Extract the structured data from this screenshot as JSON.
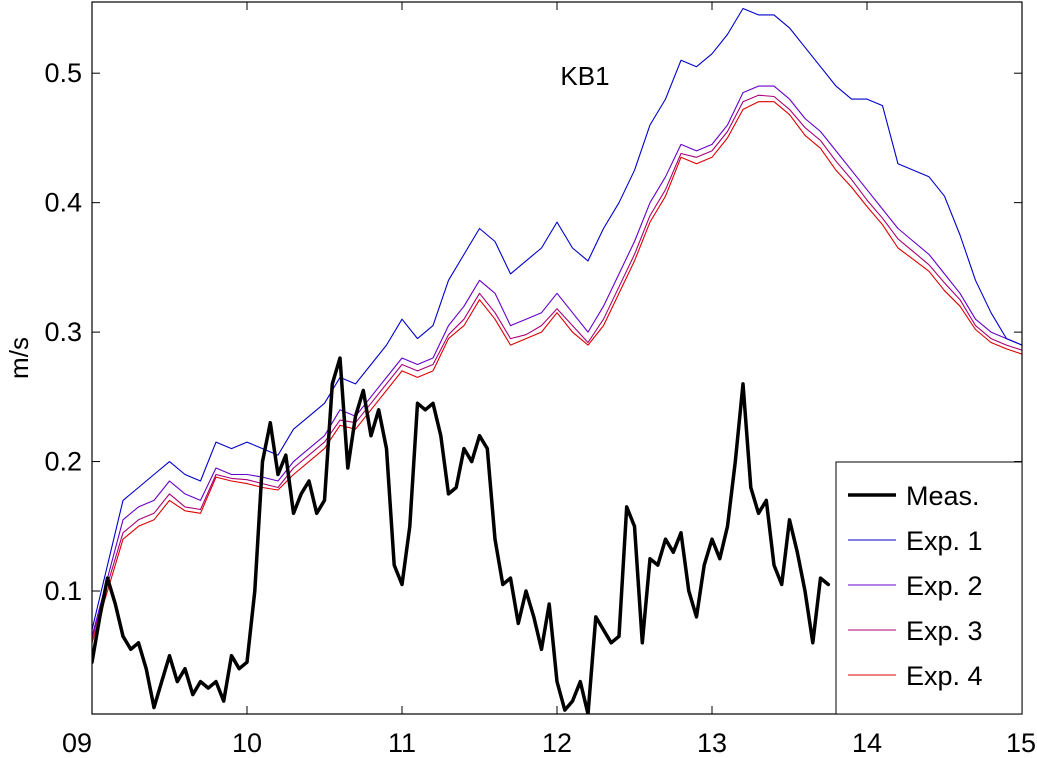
{
  "chart_data": {
    "type": "line",
    "title": "KB1",
    "xlabel": "",
    "ylabel": "m/s",
    "xlim": [
      9,
      15
    ],
    "ylim": [
      0.005,
      0.555
    ],
    "x_ticks": [
      9,
      10,
      11,
      12,
      13,
      14,
      15
    ],
    "x_tick_labels": [
      "09",
      "10",
      "11",
      "12",
      "13",
      "14",
      "15"
    ],
    "y_ticks": [
      0.1,
      0.2,
      0.3,
      0.4,
      0.5
    ],
    "y_tick_labels": [
      "0.1",
      "0.2",
      "0.3",
      "0.4",
      "0.5"
    ],
    "grid": false,
    "legend": "bottom-right",
    "series": [
      {
        "name": "Meas.",
        "color": "#000000",
        "x": [
          9.0,
          9.05,
          9.1,
          9.15,
          9.2,
          9.25,
          9.3,
          9.35,
          9.4,
          9.45,
          9.5,
          9.55,
          9.6,
          9.65,
          9.7,
          9.75,
          9.8,
          9.85,
          9.9,
          9.95,
          10.0,
          10.05,
          10.1,
          10.15,
          10.2,
          10.25,
          10.3,
          10.35,
          10.4,
          10.45,
          10.5,
          10.55,
          10.6,
          10.65,
          10.7,
          10.75,
          10.8,
          10.85,
          10.9,
          10.95,
          11.0,
          11.05,
          11.1,
          11.15,
          11.2,
          11.25,
          11.3,
          11.35,
          11.4,
          11.45,
          11.5,
          11.55,
          11.6,
          11.65,
          11.7,
          11.75,
          11.8,
          11.85,
          11.9,
          11.95,
          12.0,
          12.05,
          12.1,
          12.15,
          12.2,
          12.25,
          12.3,
          12.35,
          12.4,
          12.45,
          12.5,
          12.55,
          12.6,
          12.65,
          12.7,
          12.75,
          12.8,
          12.85,
          12.9,
          12.95,
          13.0,
          13.05,
          13.1,
          13.15,
          13.2,
          13.25,
          13.3,
          13.35,
          13.4,
          13.45,
          13.5,
          13.55,
          13.6,
          13.65,
          13.7,
          13.75
        ],
        "values": [
          0.045,
          0.08,
          0.11,
          0.09,
          0.065,
          0.055,
          0.06,
          0.04,
          0.01,
          0.03,
          0.05,
          0.03,
          0.04,
          0.02,
          0.03,
          0.025,
          0.03,
          0.015,
          0.05,
          0.04,
          0.045,
          0.1,
          0.2,
          0.23,
          0.19,
          0.205,
          0.16,
          0.175,
          0.185,
          0.16,
          0.17,
          0.26,
          0.28,
          0.195,
          0.235,
          0.255,
          0.22,
          0.24,
          0.21,
          0.12,
          0.105,
          0.15,
          0.245,
          0.24,
          0.245,
          0.22,
          0.175,
          0.18,
          0.21,
          0.2,
          0.22,
          0.21,
          0.14,
          0.105,
          0.11,
          0.075,
          0.1,
          0.08,
          0.055,
          0.09,
          0.03,
          0.008,
          0.015,
          0.03,
          0.005,
          0.08,
          0.07,
          0.06,
          0.065,
          0.165,
          0.15,
          0.06,
          0.125,
          0.12,
          0.14,
          0.13,
          0.145,
          0.1,
          0.08,
          0.12,
          0.14,
          0.125,
          0.15,
          0.2,
          0.26,
          0.18,
          0.16,
          0.17,
          0.12,
          0.105,
          0.155,
          0.13,
          0.1,
          0.06,
          0.11,
          0.105
        ]
      },
      {
        "name": "Exp. 1",
        "color": "#0000cc",
        "x": [
          9.0,
          9.1,
          9.2,
          9.3,
          9.4,
          9.5,
          9.6,
          9.7,
          9.8,
          9.9,
          10.0,
          10.1,
          10.2,
          10.3,
          10.4,
          10.5,
          10.6,
          10.7,
          10.8,
          10.9,
          11.0,
          11.1,
          11.2,
          11.3,
          11.4,
          11.5,
          11.6,
          11.7,
          11.8,
          11.9,
          12.0,
          12.1,
          12.2,
          12.3,
          12.4,
          12.5,
          12.6,
          12.7,
          12.8,
          12.9,
          13.0,
          13.1,
          13.2,
          13.3,
          13.4,
          13.5,
          13.6,
          13.7,
          13.8,
          13.9,
          14.0,
          14.1,
          14.2,
          14.3,
          14.4,
          14.5,
          14.6,
          14.7,
          14.8,
          14.9,
          15.0
        ],
        "values": [
          0.07,
          0.12,
          0.17,
          0.18,
          0.19,
          0.2,
          0.19,
          0.185,
          0.215,
          0.21,
          0.215,
          0.21,
          0.205,
          0.225,
          0.235,
          0.245,
          0.265,
          0.26,
          0.275,
          0.29,
          0.31,
          0.295,
          0.305,
          0.34,
          0.36,
          0.38,
          0.37,
          0.345,
          0.355,
          0.365,
          0.385,
          0.365,
          0.355,
          0.38,
          0.4,
          0.425,
          0.46,
          0.48,
          0.51,
          0.505,
          0.515,
          0.53,
          0.55,
          0.545,
          0.545,
          0.535,
          0.52,
          0.505,
          0.49,
          0.48,
          0.48,
          0.475,
          0.43,
          0.425,
          0.42,
          0.405,
          0.375,
          0.34,
          0.315,
          0.295,
          0.29
        ]
      },
      {
        "name": "Exp. 2",
        "color": "#6600cc",
        "x": [
          9.0,
          9.1,
          9.2,
          9.3,
          9.4,
          9.5,
          9.6,
          9.7,
          9.8,
          9.9,
          10.0,
          10.1,
          10.2,
          10.3,
          10.4,
          10.5,
          10.6,
          10.7,
          10.8,
          10.9,
          11.0,
          11.1,
          11.2,
          11.3,
          11.4,
          11.5,
          11.6,
          11.7,
          11.8,
          11.9,
          12.0,
          12.1,
          12.2,
          12.3,
          12.4,
          12.5,
          12.6,
          12.7,
          12.8,
          12.9,
          13.0,
          13.1,
          13.2,
          13.3,
          13.4,
          13.5,
          13.6,
          13.7,
          13.8,
          13.9,
          14.0,
          14.1,
          14.2,
          14.3,
          14.4,
          14.5,
          14.6,
          14.7,
          14.8,
          14.9,
          15.0
        ],
        "values": [
          0.065,
          0.11,
          0.155,
          0.165,
          0.17,
          0.185,
          0.175,
          0.17,
          0.195,
          0.19,
          0.19,
          0.188,
          0.185,
          0.2,
          0.21,
          0.22,
          0.24,
          0.235,
          0.25,
          0.265,
          0.28,
          0.275,
          0.28,
          0.305,
          0.32,
          0.34,
          0.33,
          0.305,
          0.31,
          0.315,
          0.33,
          0.315,
          0.3,
          0.32,
          0.345,
          0.37,
          0.4,
          0.42,
          0.445,
          0.44,
          0.445,
          0.46,
          0.485,
          0.49,
          0.49,
          0.48,
          0.465,
          0.455,
          0.44,
          0.425,
          0.41,
          0.395,
          0.38,
          0.37,
          0.36,
          0.345,
          0.33,
          0.31,
          0.3,
          0.295,
          0.29
        ]
      },
      {
        "name": "Exp. 3",
        "color": "#aa0077",
        "x": [
          9.0,
          9.1,
          9.2,
          9.3,
          9.4,
          9.5,
          9.6,
          9.7,
          9.8,
          9.9,
          10.0,
          10.1,
          10.2,
          10.3,
          10.4,
          10.5,
          10.6,
          10.7,
          10.8,
          10.9,
          11.0,
          11.1,
          11.2,
          11.3,
          11.4,
          11.5,
          11.6,
          11.7,
          11.8,
          11.9,
          12.0,
          12.1,
          12.2,
          12.3,
          12.4,
          12.5,
          12.6,
          12.7,
          12.8,
          12.9,
          13.0,
          13.1,
          13.2,
          13.3,
          13.4,
          13.5,
          13.6,
          13.7,
          13.8,
          13.9,
          14.0,
          14.1,
          14.2,
          14.3,
          14.4,
          14.5,
          14.6,
          14.7,
          14.8,
          14.9,
          15.0
        ],
        "values": [
          0.063,
          0.105,
          0.145,
          0.155,
          0.16,
          0.175,
          0.165,
          0.163,
          0.19,
          0.187,
          0.186,
          0.183,
          0.18,
          0.195,
          0.205,
          0.215,
          0.232,
          0.23,
          0.245,
          0.26,
          0.275,
          0.27,
          0.275,
          0.298,
          0.31,
          0.33,
          0.315,
          0.295,
          0.298,
          0.305,
          0.318,
          0.305,
          0.292,
          0.31,
          0.335,
          0.36,
          0.39,
          0.41,
          0.438,
          0.435,
          0.44,
          0.455,
          0.478,
          0.483,
          0.482,
          0.472,
          0.458,
          0.448,
          0.432,
          0.418,
          0.402,
          0.388,
          0.372,
          0.362,
          0.352,
          0.338,
          0.325,
          0.305,
          0.295,
          0.29,
          0.286
        ]
      },
      {
        "name": "Exp. 4",
        "color": "#dd0000",
        "x": [
          9.0,
          9.1,
          9.2,
          9.3,
          9.4,
          9.5,
          9.6,
          9.7,
          9.8,
          9.9,
          10.0,
          10.1,
          10.2,
          10.3,
          10.4,
          10.5,
          10.6,
          10.7,
          10.8,
          10.9,
          11.0,
          11.1,
          11.2,
          11.3,
          11.4,
          11.5,
          11.6,
          11.7,
          11.8,
          11.9,
          12.0,
          12.1,
          12.2,
          12.3,
          12.4,
          12.5,
          12.6,
          12.7,
          12.8,
          12.9,
          13.0,
          13.1,
          13.2,
          13.3,
          13.4,
          13.5,
          13.6,
          13.7,
          13.8,
          13.9,
          14.0,
          14.1,
          14.2,
          14.3,
          14.4,
          14.5,
          14.6,
          14.7,
          14.8,
          14.9,
          15.0
        ],
        "values": [
          0.06,
          0.1,
          0.14,
          0.15,
          0.155,
          0.17,
          0.162,
          0.16,
          0.188,
          0.185,
          0.183,
          0.18,
          0.178,
          0.19,
          0.2,
          0.21,
          0.228,
          0.225,
          0.24,
          0.255,
          0.27,
          0.265,
          0.27,
          0.295,
          0.305,
          0.325,
          0.31,
          0.29,
          0.295,
          0.3,
          0.315,
          0.3,
          0.29,
          0.305,
          0.33,
          0.355,
          0.385,
          0.405,
          0.435,
          0.43,
          0.435,
          0.45,
          0.472,
          0.478,
          0.478,
          0.468,
          0.452,
          0.442,
          0.425,
          0.412,
          0.397,
          0.383,
          0.365,
          0.356,
          0.347,
          0.332,
          0.32,
          0.302,
          0.292,
          0.287,
          0.283
        ]
      }
    ]
  }
}
